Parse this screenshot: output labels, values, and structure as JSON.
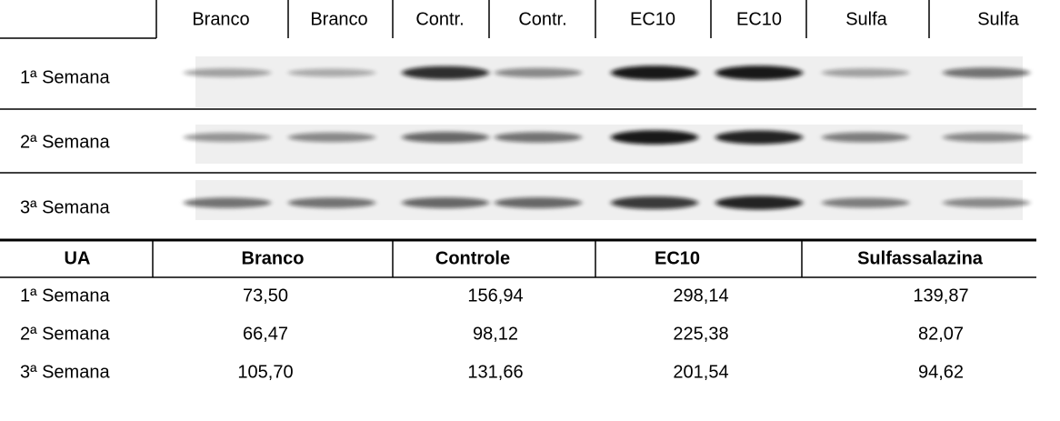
{
  "header": {
    "lanes": [
      "Branco",
      "Branco",
      "Contr.",
      "Contr.",
      "EC10",
      "EC10",
      "Sulfa",
      "Sulfa"
    ]
  },
  "blots": [
    {
      "label": "1ª Semana"
    },
    {
      "label": "2ª Semana"
    },
    {
      "label": "3ª Semana"
    }
  ],
  "table": {
    "header": [
      "UA",
      "Branco",
      "Controle",
      "EC10",
      "Sulfassalazina"
    ],
    "rows": [
      [
        "1ª Semana",
        "73,50",
        "156,94",
        "298,14",
        "139,87"
      ],
      [
        "2ª Semana",
        "66,47",
        "98,12",
        "225,38",
        "82,07"
      ],
      [
        "3ª Semana",
        "105,70",
        "131,66",
        "201,54",
        "94,62"
      ]
    ]
  }
}
